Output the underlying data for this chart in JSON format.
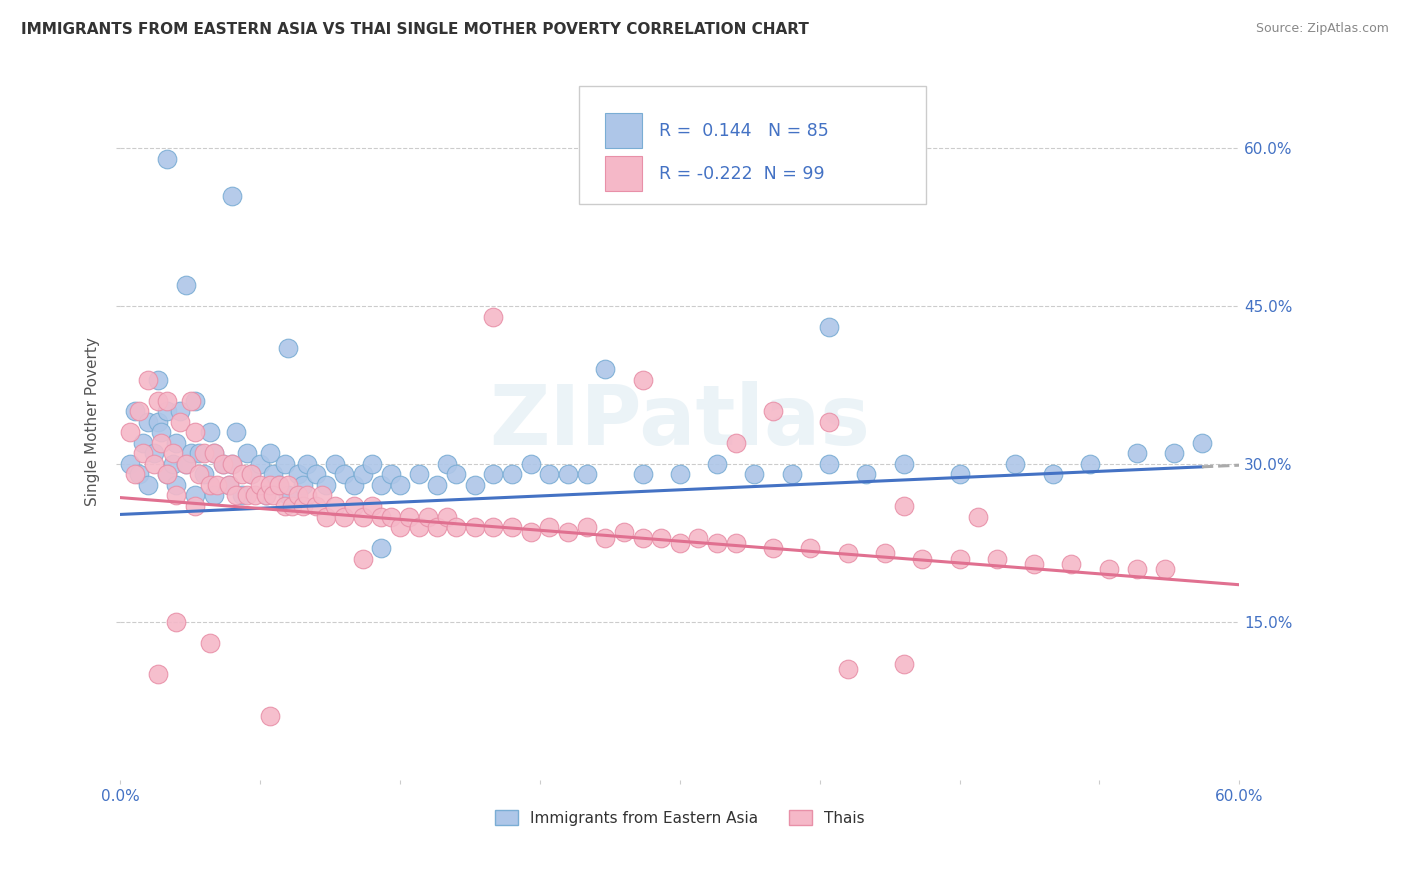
{
  "title": "IMMIGRANTS FROM EASTERN ASIA VS THAI SINGLE MOTHER POVERTY CORRELATION CHART",
  "source": "Source: ZipAtlas.com",
  "ylabel": "Single Mother Poverty",
  "ytick_vals": [
    0.15,
    0.3,
    0.45,
    0.6
  ],
  "xlim": [
    0.0,
    0.6
  ],
  "ylim": [
    0.0,
    0.68
  ],
  "legend_labels": [
    "Immigrants from Eastern Asia",
    "Thais"
  ],
  "r_blue": 0.144,
  "n_blue": 85,
  "r_pink": -0.222,
  "n_pink": 99,
  "color_blue_face": "#aec6e8",
  "color_blue_edge": "#7aadd4",
  "color_pink_face": "#f5b8c8",
  "color_pink_edge": "#e890a8",
  "line_blue": "#4472c4",
  "line_pink": "#e07090",
  "line_dashed_color": "#aaaaaa",
  "watermark": "ZIPatlas",
  "blue_intercept": 0.252,
  "blue_slope": 0.078,
  "pink_intercept": 0.268,
  "pink_slope": -0.138,
  "blue_scatter_x": [
    0.005,
    0.008,
    0.01,
    0.012,
    0.015,
    0.015,
    0.018,
    0.02,
    0.02,
    0.022,
    0.025,
    0.025,
    0.028,
    0.03,
    0.03,
    0.032,
    0.035,
    0.038,
    0.04,
    0.04,
    0.042,
    0.045,
    0.048,
    0.05,
    0.05,
    0.055,
    0.058,
    0.06,
    0.062,
    0.065,
    0.068,
    0.07,
    0.075,
    0.078,
    0.08,
    0.082,
    0.085,
    0.088,
    0.09,
    0.095,
    0.098,
    0.1,
    0.105,
    0.11,
    0.115,
    0.12,
    0.125,
    0.13,
    0.135,
    0.14,
    0.145,
    0.15,
    0.16,
    0.17,
    0.175,
    0.18,
    0.19,
    0.2,
    0.21,
    0.22,
    0.23,
    0.24,
    0.25,
    0.28,
    0.3,
    0.32,
    0.34,
    0.36,
    0.38,
    0.4,
    0.42,
    0.45,
    0.48,
    0.5,
    0.52,
    0.545,
    0.565,
    0.58,
    0.38,
    0.26,
    0.14,
    0.09,
    0.06,
    0.035,
    0.025
  ],
  "blue_scatter_y": [
    0.3,
    0.35,
    0.29,
    0.32,
    0.34,
    0.28,
    0.31,
    0.34,
    0.38,
    0.33,
    0.29,
    0.35,
    0.3,
    0.28,
    0.32,
    0.35,
    0.3,
    0.31,
    0.27,
    0.36,
    0.31,
    0.29,
    0.33,
    0.27,
    0.31,
    0.3,
    0.28,
    0.3,
    0.33,
    0.27,
    0.31,
    0.29,
    0.3,
    0.27,
    0.31,
    0.29,
    0.28,
    0.3,
    0.27,
    0.29,
    0.28,
    0.3,
    0.29,
    0.28,
    0.3,
    0.29,
    0.28,
    0.29,
    0.3,
    0.28,
    0.29,
    0.28,
    0.29,
    0.28,
    0.3,
    0.29,
    0.28,
    0.29,
    0.29,
    0.3,
    0.29,
    0.29,
    0.29,
    0.29,
    0.29,
    0.3,
    0.29,
    0.29,
    0.3,
    0.29,
    0.3,
    0.29,
    0.3,
    0.29,
    0.3,
    0.31,
    0.31,
    0.32,
    0.43,
    0.39,
    0.22,
    0.41,
    0.555,
    0.47,
    0.59
  ],
  "pink_scatter_x": [
    0.005,
    0.008,
    0.01,
    0.012,
    0.015,
    0.018,
    0.02,
    0.022,
    0.025,
    0.025,
    0.028,
    0.03,
    0.032,
    0.035,
    0.038,
    0.04,
    0.04,
    0.042,
    0.045,
    0.048,
    0.05,
    0.052,
    0.055,
    0.058,
    0.06,
    0.062,
    0.065,
    0.068,
    0.07,
    0.072,
    0.075,
    0.078,
    0.08,
    0.082,
    0.085,
    0.088,
    0.09,
    0.092,
    0.095,
    0.098,
    0.1,
    0.105,
    0.108,
    0.11,
    0.115,
    0.12,
    0.125,
    0.13,
    0.135,
    0.14,
    0.145,
    0.15,
    0.155,
    0.16,
    0.165,
    0.17,
    0.175,
    0.18,
    0.19,
    0.2,
    0.21,
    0.22,
    0.23,
    0.24,
    0.25,
    0.26,
    0.27,
    0.28,
    0.29,
    0.3,
    0.31,
    0.32,
    0.33,
    0.35,
    0.37,
    0.39,
    0.41,
    0.43,
    0.45,
    0.47,
    0.49,
    0.51,
    0.53,
    0.545,
    0.56,
    0.35,
    0.28,
    0.2,
    0.13,
    0.08,
    0.048,
    0.03,
    0.02,
    0.38,
    0.42,
    0.46,
    0.39,
    0.42,
    0.33
  ],
  "pink_scatter_y": [
    0.33,
    0.29,
    0.35,
    0.31,
    0.38,
    0.3,
    0.36,
    0.32,
    0.29,
    0.36,
    0.31,
    0.27,
    0.34,
    0.3,
    0.36,
    0.26,
    0.33,
    0.29,
    0.31,
    0.28,
    0.31,
    0.28,
    0.3,
    0.28,
    0.3,
    0.27,
    0.29,
    0.27,
    0.29,
    0.27,
    0.28,
    0.27,
    0.28,
    0.27,
    0.28,
    0.26,
    0.28,
    0.26,
    0.27,
    0.26,
    0.27,
    0.26,
    0.27,
    0.25,
    0.26,
    0.25,
    0.26,
    0.25,
    0.26,
    0.25,
    0.25,
    0.24,
    0.25,
    0.24,
    0.25,
    0.24,
    0.25,
    0.24,
    0.24,
    0.24,
    0.24,
    0.235,
    0.24,
    0.235,
    0.24,
    0.23,
    0.235,
    0.23,
    0.23,
    0.225,
    0.23,
    0.225,
    0.225,
    0.22,
    0.22,
    0.215,
    0.215,
    0.21,
    0.21,
    0.21,
    0.205,
    0.205,
    0.2,
    0.2,
    0.2,
    0.35,
    0.38,
    0.44,
    0.21,
    0.06,
    0.13,
    0.15,
    0.1,
    0.34,
    0.26,
    0.25,
    0.105,
    0.11,
    0.32
  ]
}
